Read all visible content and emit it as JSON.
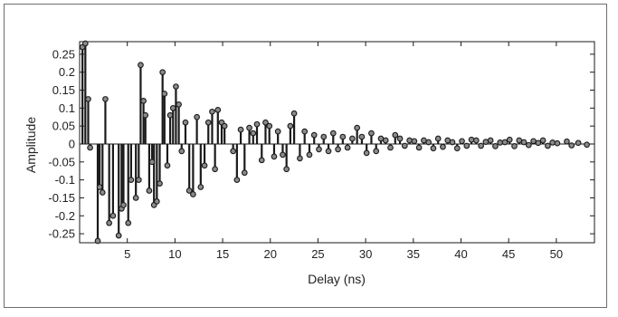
{
  "chart_data": {
    "type": "stem",
    "xlabel": "Delay (ns)",
    "ylabel": "Amplitude",
    "xlim": [
      0,
      54
    ],
    "ylim": [
      -0.275,
      0.285
    ],
    "xticks": [
      5,
      10,
      15,
      20,
      25,
      30,
      35,
      40,
      45,
      50
    ],
    "yticks": [
      0.25,
      0.2,
      0.15,
      0.1,
      0.05,
      0,
      -0.05,
      -0.1,
      -0.15,
      -0.2,
      -0.25
    ],
    "ytick_labels": [
      "0.25",
      "0.2",
      "0.15",
      "0.1",
      "0.05",
      "0",
      "-0.05",
      "-0.1",
      "-0.15",
      "-0.2",
      "-0.25"
    ],
    "colors": {
      "stem": "#1a1a1a",
      "marker_fill": "#8a8a8a",
      "frame": "#6e6e6e"
    },
    "x": [
      0.3,
      0.6,
      0.9,
      1.1,
      1.9,
      2.1,
      2.4,
      2.7,
      3.1,
      3.5,
      4.1,
      4.4,
      4.6,
      5.1,
      5.4,
      5.9,
      6.2,
      6.4,
      6.7,
      6.9,
      7.3,
      7.6,
      7.8,
      8.1,
      8.4,
      8.7,
      8.9,
      9.2,
      9.5,
      9.8,
      10.1,
      10.4,
      10.7,
      11.1,
      11.5,
      11.9,
      12.3,
      12.7,
      13.1,
      13.5,
      13.9,
      14.2,
      14.5,
      14.9,
      15.2,
      16.1,
      16.5,
      16.9,
      17.3,
      17.8,
      18.2,
      18.6,
      19.1,
      19.5,
      19.9,
      20.4,
      20.8,
      21.3,
      21.7,
      22.1,
      22.5,
      23.1,
      23.6,
      24.1,
      24.6,
      25.1,
      25.6,
      26.1,
      26.6,
      27.1,
      27.6,
      28.1,
      28.6,
      29.1,
      29.6,
      30.1,
      30.6,
      31.1,
      31.6,
      32.1,
      32.6,
      33.1,
      33.6,
      34.1,
      34.6,
      35.1,
      35.6,
      36.1,
      36.6,
      37.1,
      37.6,
      38.1,
      38.6,
      39.1,
      39.6,
      40.1,
      40.6,
      41.1,
      41.6,
      42.1,
      42.6,
      43.1,
      43.6,
      44.1,
      44.6,
      45.1,
      45.6,
      46.1,
      46.6,
      47.1,
      47.6,
      48.1,
      48.6,
      49.1,
      49.6,
      50.1,
      51.1,
      51.6,
      52.3,
      53.2
    ],
    "y": [
      0.27,
      0.28,
      0.125,
      -0.01,
      -0.27,
      -0.12,
      -0.135,
      0.125,
      -0.22,
      -0.2,
      -0.255,
      -0.18,
      -0.17,
      -0.22,
      -0.1,
      -0.15,
      -0.1,
      0.22,
      0.12,
      0.08,
      -0.13,
      -0.05,
      -0.17,
      -0.16,
      -0.11,
      0.2,
      0.14,
      -0.06,
      0.08,
      0.1,
      0.16,
      0.11,
      -0.02,
      0.06,
      -0.13,
      -0.14,
      0.075,
      -0.12,
      -0.06,
      0.06,
      0.09,
      -0.07,
      0.095,
      0.06,
      0.05,
      -0.02,
      -0.1,
      0.04,
      -0.08,
      0.045,
      0.03,
      0.055,
      -0.045,
      0.06,
      0.05,
      -0.035,
      0.035,
      -0.03,
      -0.07,
      0.05,
      0.085,
      -0.04,
      0.035,
      -0.03,
      0.025,
      -0.015,
      0.02,
      -0.02,
      0.03,
      -0.015,
      0.02,
      -0.01,
      0.015,
      0.045,
      0.02,
      -0.025,
      0.03,
      -0.02,
      0.015,
      0.01,
      -0.01,
      0.025,
      0.015,
      -0.005,
      0.01,
      0.008,
      -0.01,
      0.01,
      0.005,
      -0.012,
      0.015,
      -0.008,
      0.01,
      0.005,
      -0.012,
      0.008,
      -0.005,
      0.012,
      0.01,
      -0.005,
      0.006,
      0.01,
      -0.006,
      0.004,
      0.005,
      0.012,
      -0.006,
      0.01,
      0.005,
      -0.003,
      0.008,
      0.003,
      0.01,
      -0.005,
      0.004,
      0.002,
      0.007,
      -0.004,
      0.003,
      -0.002
    ]
  }
}
